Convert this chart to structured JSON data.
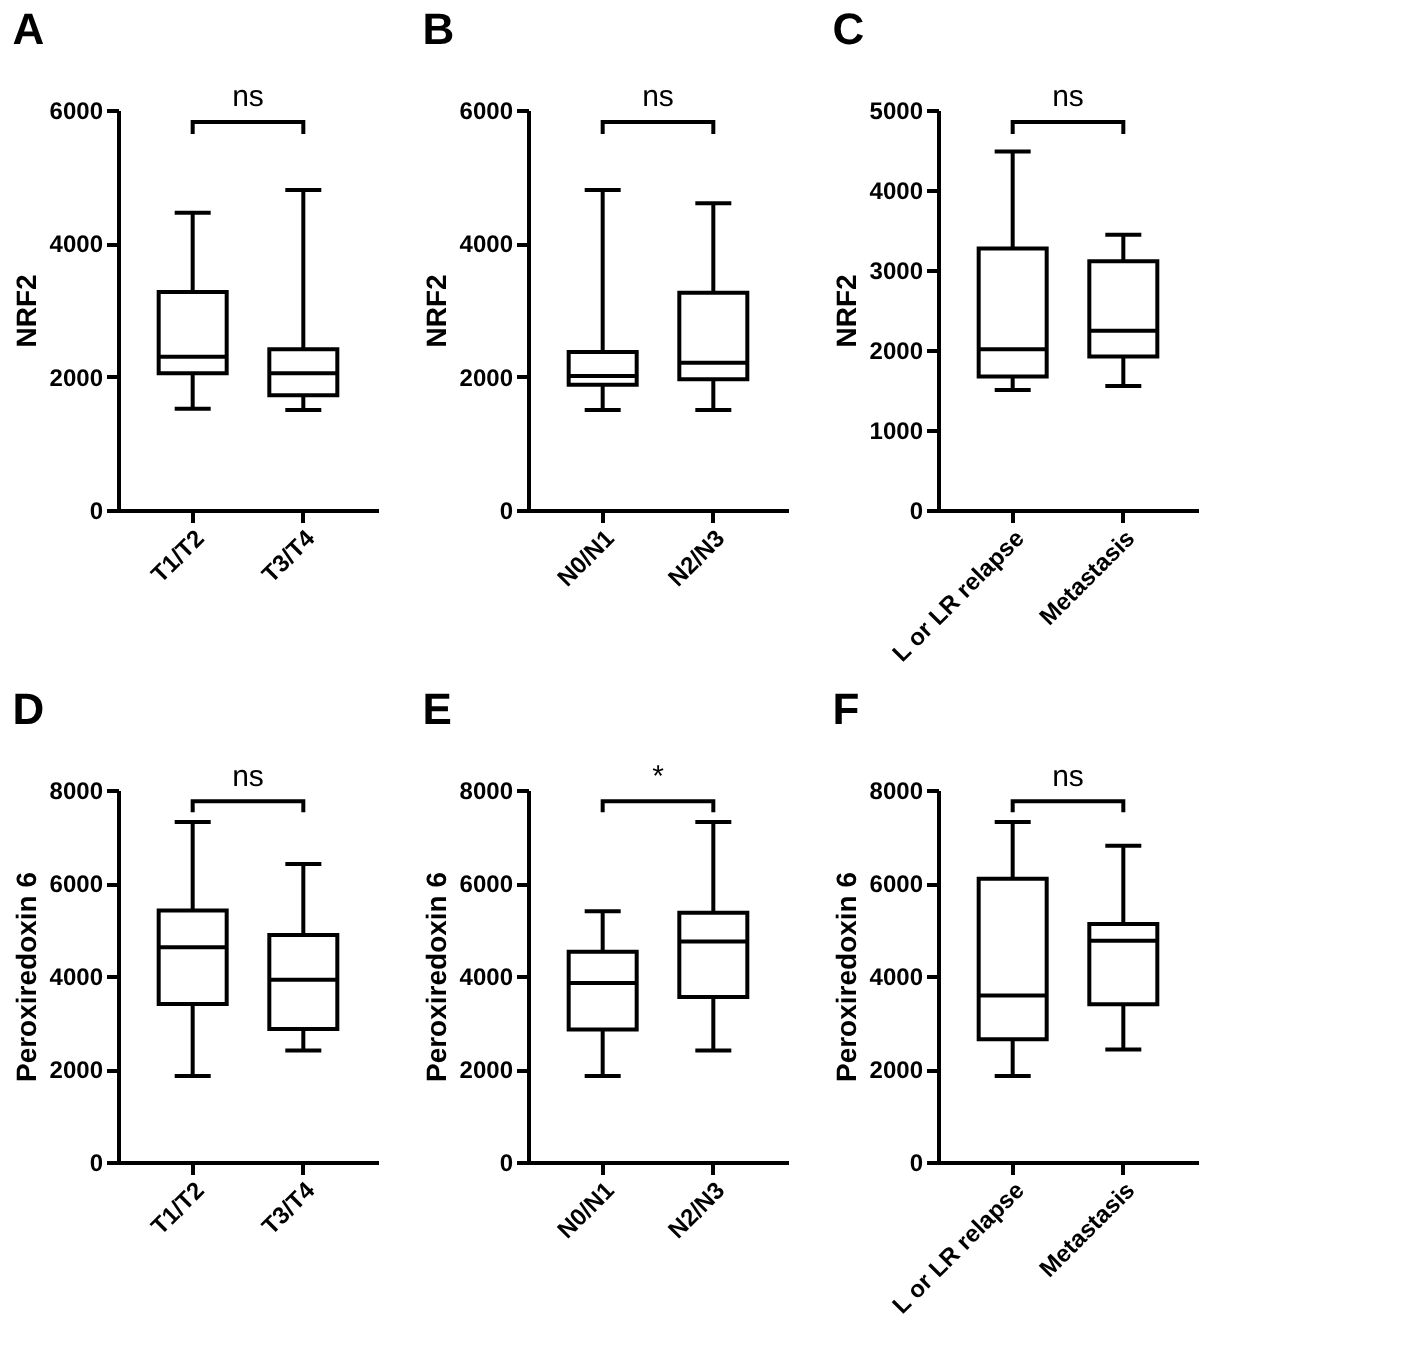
{
  "chart_data": [
    {
      "type": "box",
      "title": "A",
      "ylabel": "NRF2",
      "categories": [
        "T1/T2",
        "T3/T4"
      ],
      "ylim": [
        0,
        6000
      ],
      "yticks": [
        0,
        2000,
        4000,
        6000
      ],
      "annotations": [
        "ns"
      ],
      "boxes": [
        {
          "low": 1520,
          "q1": 2050,
          "median": 2300,
          "q3": 3270,
          "high": 4460
        },
        {
          "low": 1500,
          "q1": 1720,
          "median": 2050,
          "q3": 2410,
          "high": 4800
        }
      ]
    },
    {
      "type": "box",
      "title": "B",
      "ylabel": "NRF2",
      "categories": [
        "N0/N1",
        "N2/N3"
      ],
      "ylim": [
        0,
        6000
      ],
      "yticks": [
        0,
        2000,
        4000,
        6000
      ],
      "annotations": [
        "ns"
      ],
      "boxes": [
        {
          "low": 1500,
          "q1": 1880,
          "median": 2010,
          "q3": 2370,
          "high": 4800
        },
        {
          "low": 1500,
          "q1": 1960,
          "median": 2210,
          "q3": 3260,
          "high": 4600
        }
      ]
    },
    {
      "type": "box",
      "title": "C",
      "ylabel": "NRF2",
      "categories": [
        "L or LR relapse",
        "Metastasis"
      ],
      "ylim": [
        0,
        5000
      ],
      "yticks": [
        0,
        1000,
        2000,
        3000,
        4000,
        5000
      ],
      "annotations": [
        "ns"
      ],
      "boxes": [
        {
          "low": 1500,
          "q1": 1670,
          "median": 2010,
          "q3": 3270,
          "high": 4480
        },
        {
          "low": 1550,
          "q1": 1920,
          "median": 2240,
          "q3": 3110,
          "high": 3440
        }
      ]
    },
    {
      "type": "box",
      "title": "D",
      "ylabel": "Peroxiredoxin 6",
      "categories": [
        "T1/T2",
        "T3/T4"
      ],
      "ylim": [
        0,
        8000
      ],
      "yticks": [
        0,
        2000,
        4000,
        6000,
        8000
      ],
      "annotations": [
        "ns"
      ],
      "boxes": [
        {
          "low": 1850,
          "q1": 3400,
          "median": 4620,
          "q3": 5410,
          "high": 7310
        },
        {
          "low": 2400,
          "q1": 2860,
          "median": 3920,
          "q3": 4880,
          "high": 6410
        }
      ]
    },
    {
      "type": "box",
      "title": "E",
      "ylabel": "Peroxiredoxin 6",
      "categories": [
        "N0/N1",
        "N2/N3"
      ],
      "ylim": [
        0,
        8000
      ],
      "yticks": [
        0,
        2000,
        4000,
        6000,
        8000
      ],
      "annotations": [
        "*"
      ],
      "boxes": [
        {
          "low": 1850,
          "q1": 2850,
          "median": 3850,
          "q3": 4520,
          "high": 5390
        },
        {
          "low": 2400,
          "q1": 3550,
          "median": 4740,
          "q3": 5360,
          "high": 7310
        }
      ]
    },
    {
      "type": "box",
      "title": "F",
      "ylabel": "Peroxiredoxin 6",
      "categories": [
        "L or LR relapse",
        "Metastasis"
      ],
      "ylim": [
        0,
        8000
      ],
      "yticks": [
        0,
        2000,
        4000,
        6000,
        8000
      ],
      "annotations": [
        "ns"
      ],
      "boxes": [
        {
          "low": 1850,
          "q1": 2640,
          "median": 3580,
          "q3": 6090,
          "high": 7310
        },
        {
          "low": 2420,
          "q1": 3390,
          "median": 4760,
          "q3": 5120,
          "high": 6800
        }
      ]
    }
  ]
}
